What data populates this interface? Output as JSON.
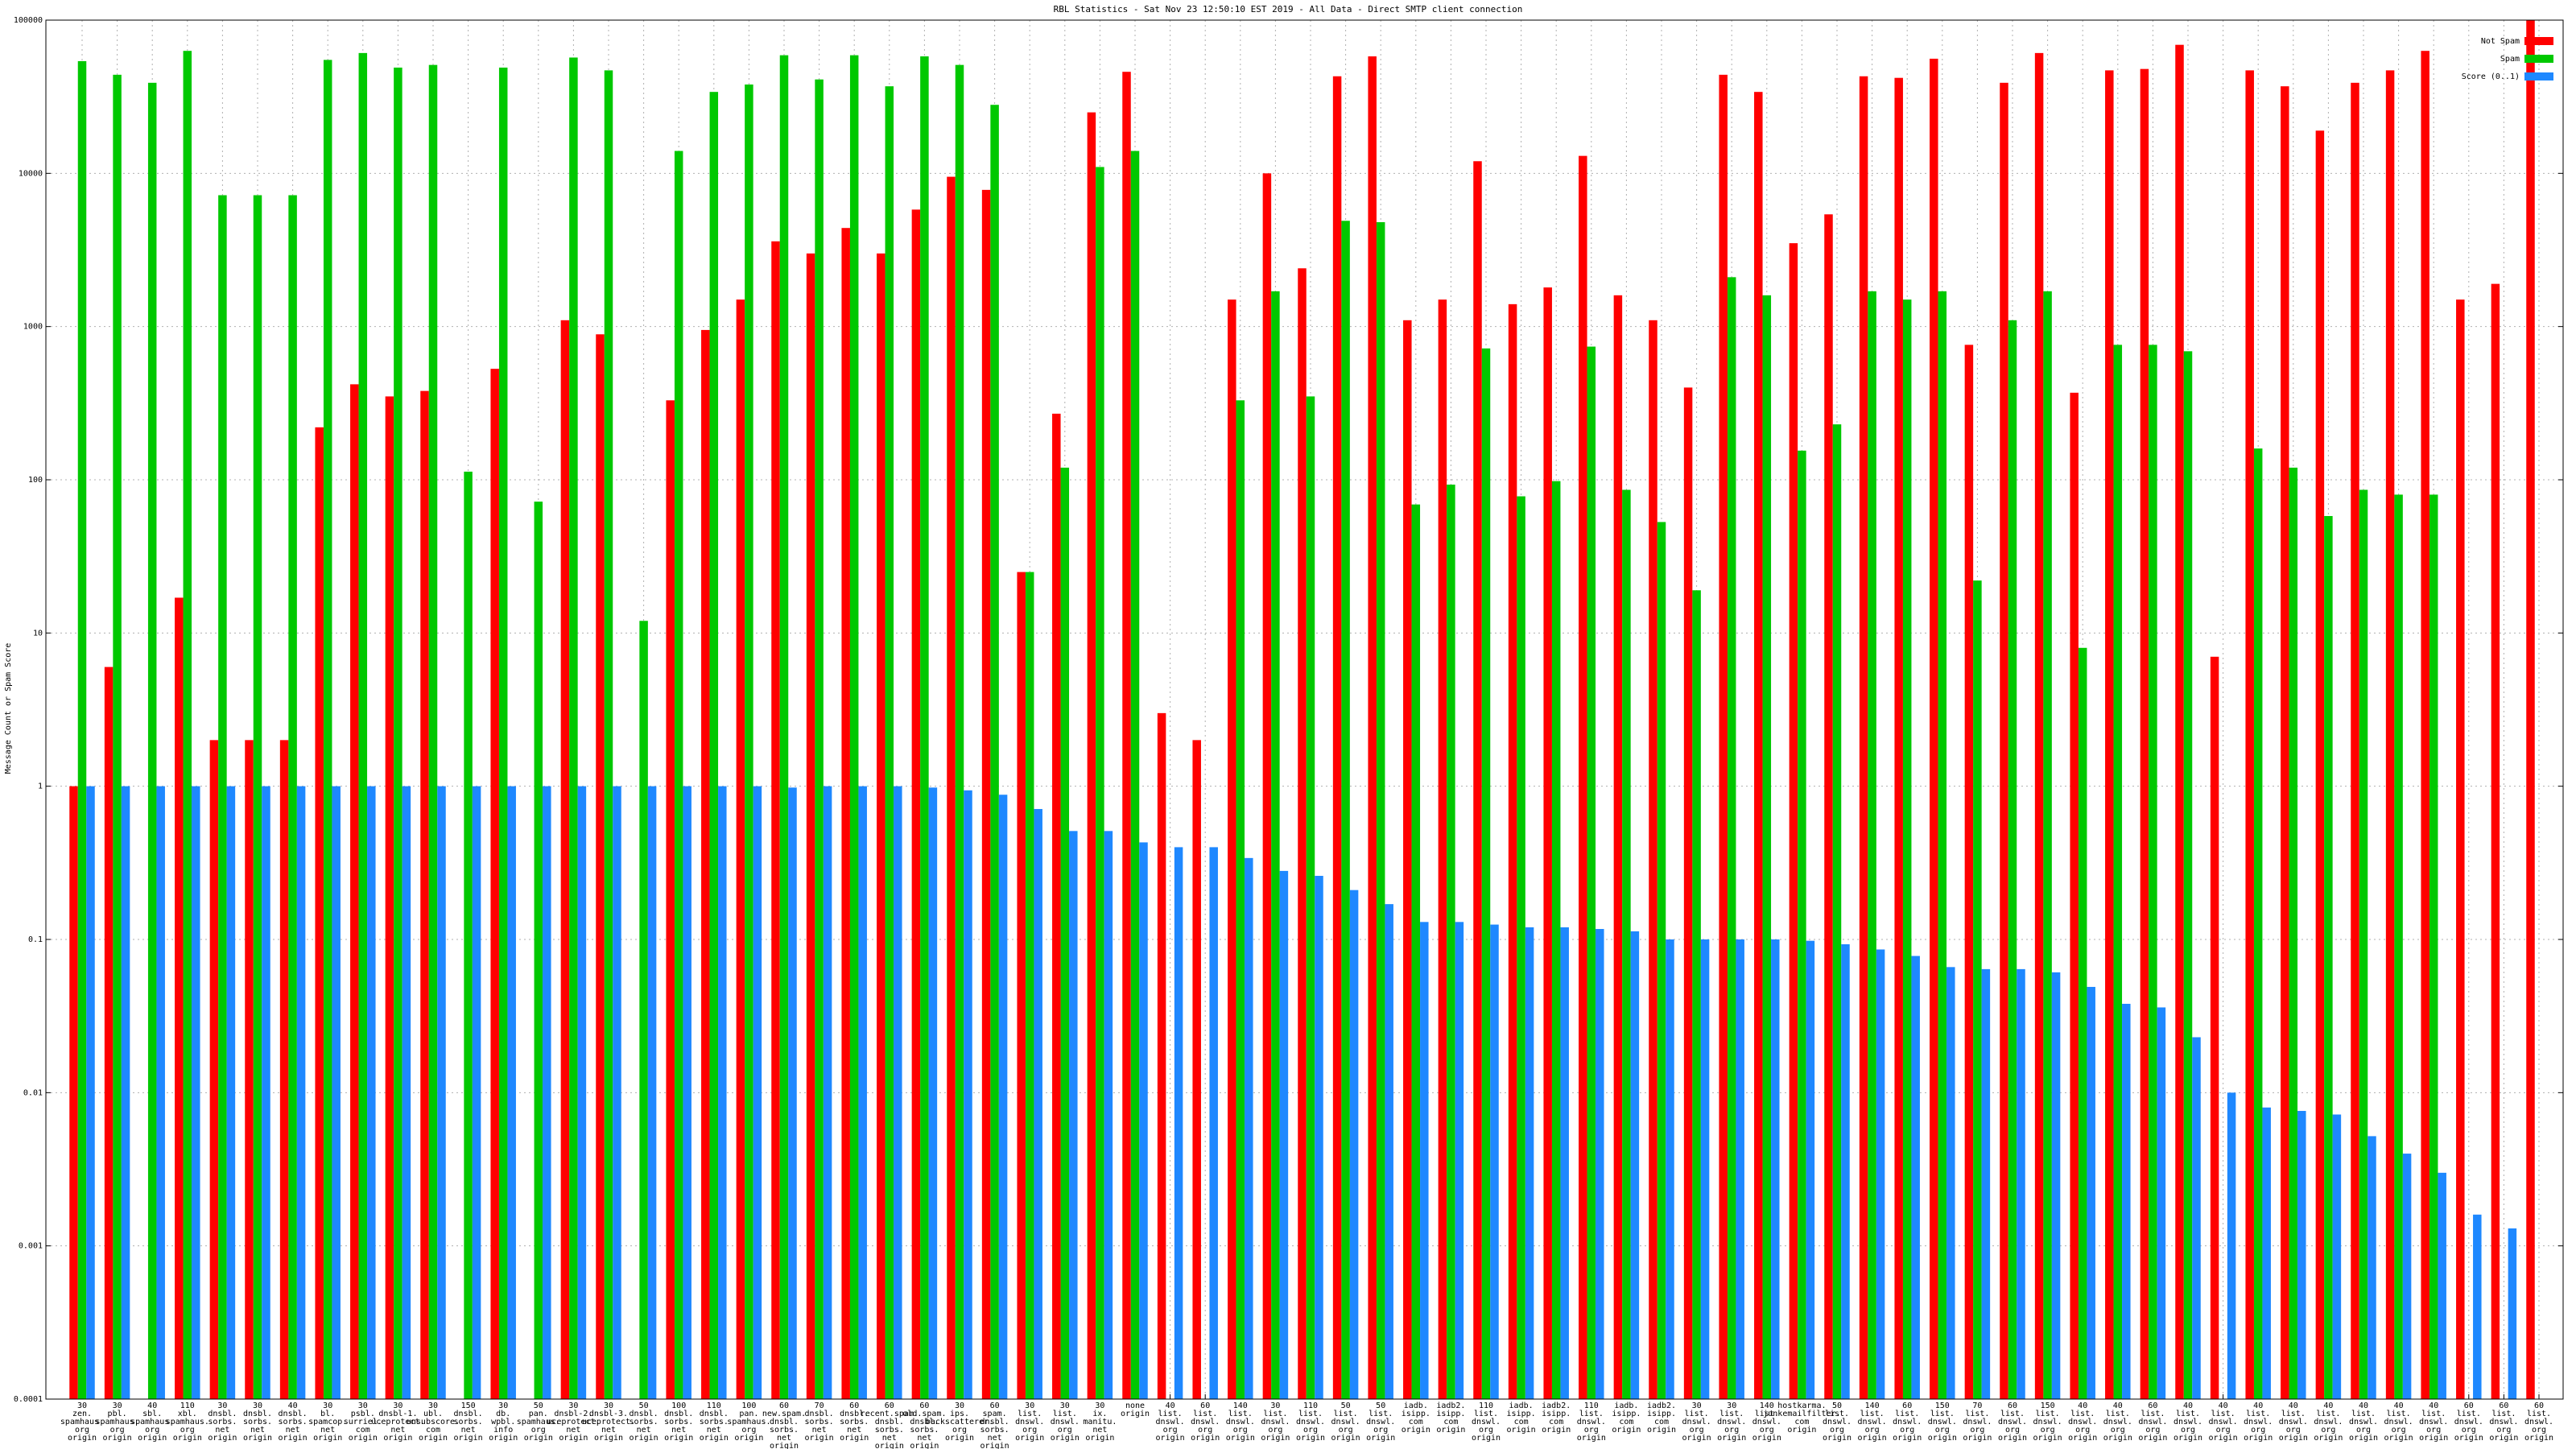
{
  "chart_data": {
    "type": "bar",
    "title": "RBL Statistics - Sat Nov 23 12:50:10 EST 2019 - All Data - Direct SMTP client connection",
    "ylabel": "Message Count or Spam Score",
    "log_scale": true,
    "grid": true,
    "legend": "top right",
    "ylim": [
      0.0001,
      100000
    ],
    "yticks": [
      0.0001,
      0.001,
      0.01,
      0.1,
      1,
      10,
      100,
      1000,
      10000,
      100000
    ],
    "categories": [
      [
        "30",
        "zen.",
        "spamhaus.",
        "org",
        "origin"
      ],
      [
        "30",
        "pbl.",
        "spamhaus.",
        "org",
        "origin"
      ],
      [
        "40",
        "sbl.",
        "spamhaus.",
        "org",
        "origin"
      ],
      [
        "110",
        "xbl.",
        "spamhaus.",
        "org",
        "origin"
      ],
      [
        "30",
        "dnsbl.",
        "sorbs.",
        "net",
        "origin"
      ],
      [
        "30",
        "dnsbl.",
        "sorbs.",
        "net",
        "origin"
      ],
      [
        "40",
        "dnsbl.",
        "sorbs.",
        "net",
        "origin"
      ],
      [
        "30",
        "bl.",
        "spamcop.",
        "net",
        "origin"
      ],
      [
        "30",
        "psbl.",
        "surriel.",
        "com",
        "origin"
      ],
      [
        "30",
        "dnsbl-1.",
        "uceprotect.",
        "net",
        "origin"
      ],
      [
        "30",
        "ubl.",
        "unsubscore.",
        "com",
        "origin"
      ],
      [
        "150",
        "dnsbl.",
        "sorbs.",
        "net",
        "origin"
      ],
      [
        "30",
        "db.",
        "wpbl.",
        "info",
        "origin"
      ],
      [
        "50",
        "pan.",
        "spamhaus.",
        "org",
        "origin"
      ],
      [
        "30",
        "dnsbl-2.",
        "uceprotect.",
        "net",
        "origin"
      ],
      [
        "30",
        "dnsbl-3.",
        "uceprotect.",
        "net",
        "origin"
      ],
      [
        "50",
        "dnsbl.",
        "sorbs.",
        "net",
        "origin"
      ],
      [
        "100",
        "dnsbl.",
        "sorbs.",
        "net",
        "origin"
      ],
      [
        "110",
        "dnsbl.",
        "sorbs.",
        "net",
        "origin"
      ],
      [
        "100",
        "pan.",
        "spamhaus.",
        "org",
        "origin"
      ],
      [
        "60",
        "new.spam.",
        "dnsbl.",
        "sorbs.",
        "net",
        "origin"
      ],
      [
        "70",
        "dnsbl.",
        "sorbs.",
        "net",
        "origin"
      ],
      [
        "60",
        "dnsbl.",
        "sorbs.",
        "net",
        "origin"
      ],
      [
        "60",
        "recent.spam.",
        "dnsbl.",
        "sorbs.",
        "net",
        "origin"
      ],
      [
        "60",
        "old.spam.",
        "dnsbl.",
        "sorbs.",
        "net",
        "origin"
      ],
      [
        "30",
        "ips.",
        "backscatterer.",
        "org",
        "origin"
      ],
      [
        "60",
        "spam.",
        "dnsbl.",
        "sorbs.",
        "net",
        "origin"
      ],
      [
        "30",
        "list.",
        "dnswl.",
        "org",
        "origin"
      ],
      [
        "30",
        "list.",
        "dnswl.",
        "org",
        "origin"
      ],
      [
        "30",
        "ix.",
        "manitu.",
        "net",
        "origin"
      ],
      [
        "none",
        "origin"
      ],
      [
        "40",
        "list.",
        "dnswl.",
        "org",
        "origin"
      ],
      [
        "60",
        "list.",
        "dnswl.",
        "org",
        "origin"
      ],
      [
        "140",
        "list.",
        "dnswl.",
        "org",
        "origin"
      ],
      [
        "30",
        "list.",
        "dnswl.",
        "org",
        "origin"
      ],
      [
        "110",
        "list.",
        "dnswl.",
        "org",
        "origin"
      ],
      [
        "50",
        "list.",
        "dnswl.",
        "org",
        "origin"
      ],
      [
        "50",
        "list.",
        "dnswl.",
        "org",
        "origin"
      ],
      [
        "iadb.",
        "isipp.",
        "com",
        "origin"
      ],
      [
        "iadb2.",
        "isipp.",
        "com",
        "origin"
      ],
      [
        "110",
        "list.",
        "dnswl.",
        "org",
        "origin"
      ],
      [
        "iadb.",
        "isipp.",
        "com",
        "origin"
      ],
      [
        "iadb2.",
        "isipp.",
        "com",
        "origin"
      ],
      [
        "110",
        "list.",
        "dnswl.",
        "org",
        "origin"
      ],
      [
        "iadb.",
        "isipp.",
        "com",
        "origin"
      ],
      [
        "iadb2.",
        "isipp.",
        "com",
        "origin"
      ],
      [
        "30",
        "list.",
        "dnswl.",
        "org",
        "origin"
      ],
      [
        "30",
        "list.",
        "dnswl.",
        "org",
        "origin"
      ],
      [
        "140",
        "list.",
        "dnswl.",
        "org",
        "origin"
      ],
      [
        "hostkarma.",
        "junkemailfilter.",
        "com",
        "origin"
      ],
      [
        "50",
        "list.",
        "dnswl.",
        "org",
        "origin"
      ],
      [
        "140",
        "list.",
        "dnswl.",
        "org",
        "origin"
      ],
      [
        "60",
        "list.",
        "dnswl.",
        "org",
        "origin"
      ],
      [
        "150",
        "list.",
        "dnswl.",
        "org",
        "origin"
      ],
      [
        "70",
        "list.",
        "dnswl.",
        "org",
        "origin"
      ],
      [
        "60",
        "list.",
        "dnswl.",
        "org",
        "origin"
      ],
      [
        "150",
        "list.",
        "dnswl.",
        "org",
        "origin"
      ],
      [
        "40",
        "list.",
        "dnswl.",
        "org",
        "origin"
      ],
      [
        "40",
        "list.",
        "dnswl.",
        "org",
        "origin"
      ],
      [
        "60",
        "list.",
        "dnswl.",
        "org",
        "origin"
      ],
      [
        "40",
        "list.",
        "dnswl.",
        "org",
        "origin"
      ],
      [
        "40",
        "list.",
        "dnswl.",
        "org",
        "origin"
      ],
      [
        "40",
        "list.",
        "dnswl.",
        "org",
        "origin"
      ],
      [
        "40",
        "list.",
        "dnswl.",
        "org",
        "origin"
      ],
      [
        "40",
        "list.",
        "dnswl.",
        "org",
        "origin"
      ],
      [
        "40",
        "list.",
        "dnswl.",
        "org",
        "origin"
      ],
      [
        "40",
        "list.",
        "dnswl.",
        "org",
        "origin"
      ],
      [
        "40",
        "list.",
        "dnswl.",
        "org",
        "origin"
      ],
      [
        "60",
        "list.",
        "dnswl.",
        "org",
        "origin"
      ],
      [
        "60",
        "list.",
        "dnswl.",
        "org",
        "origin"
      ],
      [
        "60",
        "list.",
        "dnswl.",
        "org",
        "origin"
      ]
    ],
    "series": [
      {
        "name": "Not Spam",
        "color": "#ff0000",
        "values": [
          1,
          6,
          null,
          17,
          2,
          2,
          2,
          220,
          420,
          350,
          380,
          null,
          530,
          null,
          1100,
          890,
          null,
          330,
          950,
          1500,
          3600,
          3000,
          4400,
          3000,
          5800,
          9500,
          7800,
          25,
          270,
          25000,
          46000,
          3,
          2,
          1500,
          10000,
          2400,
          43000,
          58000,
          1100,
          1500,
          12000,
          1400,
          1800,
          13000,
          1600,
          1100,
          400,
          44000,
          34000,
          3500,
          5400,
          43000,
          42000,
          56000,
          760,
          39000,
          61000,
          370,
          47000,
          48000,
          69000,
          7,
          47000,
          37000,
          19000,
          39000,
          47000,
          63000,
          1500,
          1900,
          100000
        ]
      },
      {
        "name": "Spam",
        "color": "#00c800",
        "values": [
          54000,
          44000,
          39000,
          63000,
          7200,
          7200,
          7200,
          55000,
          61000,
          49000,
          51000,
          113,
          49000,
          72,
          57000,
          47000,
          12,
          14000,
          34000,
          38000,
          59000,
          41000,
          59000,
          37000,
          58000,
          51000,
          28000,
          25,
          120,
          11000,
          14000,
          null,
          null,
          330,
          1700,
          350,
          4900,
          4800,
          69,
          93,
          720,
          78,
          98,
          740,
          86,
          53,
          19,
          2100,
          1600,
          155,
          230,
          1700,
          1500,
          1700,
          22,
          1100,
          1700,
          8,
          760,
          760,
          690,
          null,
          160,
          120,
          58,
          86,
          80,
          80,
          null,
          null,
          null
        ]
      },
      {
        "name": "Score (0..1)",
        "color": "#1e88ff",
        "values": [
          1,
          1,
          1,
          1,
          1,
          1,
          1,
          1,
          1,
          1,
          1,
          1,
          1,
          1,
          1,
          1,
          1,
          1,
          1,
          1,
          0.98,
          1,
          1,
          1,
          0.98,
          0.94,
          0.88,
          0.71,
          0.51,
          0.51,
          0.43,
          0.4,
          0.4,
          0.34,
          0.28,
          0.26,
          0.21,
          0.17,
          0.13,
          0.13,
          0.125,
          0.12,
          0.12,
          0.117,
          0.113,
          0.1,
          0.1,
          0.1,
          0.1,
          0.098,
          0.093,
          0.086,
          0.078,
          0.066,
          0.064,
          0.064,
          0.061,
          0.049,
          0.038,
          0.036,
          0.023,
          0.01,
          0.008,
          0.0076,
          0.0072,
          0.0052,
          0.004,
          0.003,
          0.0016,
          0.0013,
          null
        ]
      }
    ]
  }
}
